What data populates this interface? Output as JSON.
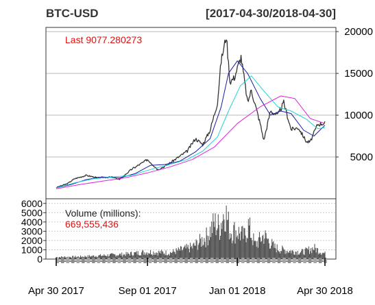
{
  "header": {
    "symbol": "BTC-USD",
    "date_range": "[2017-04-30/2018-04-30]"
  },
  "chart_data": [
    {
      "type": "line",
      "title": "BTC-USD",
      "subtitle": "[2017-04-30/2018-04-30]",
      "last_label": "Last 9077.280273",
      "ylim": [
        0,
        20500
      ],
      "y_ticks": [
        5000,
        10000,
        15000,
        20000
      ],
      "y_tick_labels": [
        "5000",
        "10000",
        "15000",
        "20000"
      ],
      "x_tick_labels": [
        "Apr 30 2017",
        "Sep 01 2017",
        "Jan 01 2018",
        "Apr 30 2018"
      ],
      "x_tick_dates": [
        "2017-04-30",
        "2017-09-01",
        "2018-01-01",
        "2018-04-30"
      ],
      "grid": true,
      "colors": {
        "price": "#333333",
        "ma1": "#1a1aa8",
        "ma2": "#22d3d3",
        "ma3": "#dd22dd",
        "last": "#e01010"
      },
      "series": [
        {
          "key": "price",
          "x": [
            "2017-04-30",
            "2017-05-15",
            "2017-05-25",
            "2017-06-10",
            "2017-06-25",
            "2017-07-15",
            "2017-07-25",
            "2017-08-10",
            "2017-08-25",
            "2017-09-01",
            "2017-09-15",
            "2017-09-25",
            "2017-10-10",
            "2017-10-25",
            "2017-11-05",
            "2017-11-15",
            "2017-11-25",
            "2017-12-05",
            "2017-12-10",
            "2017-12-17",
            "2017-12-22",
            "2017-12-28",
            "2018-01-06",
            "2018-01-15",
            "2018-01-20",
            "2018-02-01",
            "2018-02-06",
            "2018-02-15",
            "2018-02-25",
            "2018-03-05",
            "2018-03-15",
            "2018-03-25",
            "2018-04-05",
            "2018-04-10",
            "2018-04-20",
            "2018-04-30"
          ],
          "values": [
            1350,
            1800,
            2400,
            2800,
            2500,
            2600,
            2300,
            3500,
            4300,
            4700,
            3500,
            3900,
            4800,
            5700,
            7200,
            6500,
            8200,
            11500,
            16500,
            19500,
            14000,
            14500,
            17000,
            11500,
            13000,
            9000,
            7000,
            10500,
            10000,
            11500,
            8300,
            8500,
            6800,
            6800,
            8900,
            9077
          ]
        },
        {
          "key": "ma1",
          "x": [
            "2017-04-30",
            "2017-05-20",
            "2017-06-10",
            "2017-07-01",
            "2017-07-25",
            "2017-08-15",
            "2017-09-05",
            "2017-09-25",
            "2017-10-15",
            "2017-11-05",
            "2017-11-25",
            "2017-12-10",
            "2017-12-20",
            "2018-01-01",
            "2018-01-15",
            "2018-02-01",
            "2018-02-15",
            "2018-03-01",
            "2018-03-15",
            "2018-04-01",
            "2018-04-15",
            "2018-04-30"
          ],
          "values": [
            1300,
            1700,
            2300,
            2600,
            2500,
            3000,
            4000,
            4100,
            4500,
            5600,
            7200,
            11000,
            15000,
            16500,
            15000,
            12000,
            10000,
            10500,
            10200,
            8200,
            7500,
            8800
          ]
        },
        {
          "key": "ma2",
          "x": [
            "2017-04-30",
            "2017-05-25",
            "2017-06-20",
            "2017-07-15",
            "2017-08-10",
            "2017-09-05",
            "2017-10-01",
            "2017-10-25",
            "2017-11-15",
            "2017-12-05",
            "2017-12-20",
            "2018-01-05",
            "2018-01-20",
            "2018-02-05",
            "2018-02-25",
            "2018-03-15",
            "2018-04-05",
            "2018-04-20",
            "2018-04-30"
          ],
          "values": [
            1300,
            1900,
            2400,
            2600,
            2800,
            3500,
            4100,
            4700,
            5700,
            7400,
            10500,
            13500,
            14700,
            13000,
            11000,
            10500,
            9500,
            8400,
            8500
          ]
        },
        {
          "key": "ma3",
          "x": [
            "2017-04-30",
            "2017-06-01",
            "2017-07-01",
            "2017-08-01",
            "2017-09-01",
            "2017-10-01",
            "2017-11-01",
            "2017-12-01",
            "2018-01-01",
            "2018-02-01",
            "2018-03-01",
            "2018-03-20",
            "2018-04-10",
            "2018-04-30"
          ],
          "values": [
            1200,
            1700,
            2100,
            2500,
            3100,
            3800,
            4700,
            6200,
            9000,
            11000,
            12300,
            12000,
            9600,
            9000
          ]
        }
      ]
    },
    {
      "type": "bar",
      "title": "Volume (millions):",
      "value_label": "669,555,436",
      "ylim": [
        0,
        6500
      ],
      "y_ticks": [
        0,
        1000,
        2000,
        3000,
        4000,
        5000,
        6000
      ],
      "y_tick_labels": [
        "0",
        "1000",
        "2000",
        "3000",
        "4000",
        "5000",
        "6000"
      ],
      "grid": true,
      "bar_color": "#555555",
      "x": [
        "2017-05-01",
        "2017-06-01",
        "2017-07-01",
        "2017-08-01",
        "2017-09-01",
        "2017-10-01",
        "2017-11-01",
        "2017-11-20",
        "2017-12-01",
        "2017-12-08",
        "2017-12-15",
        "2017-12-22",
        "2018-01-01",
        "2018-01-10",
        "2018-01-16",
        "2018-01-25",
        "2018-02-06",
        "2018-02-20",
        "2018-03-01",
        "2018-03-15",
        "2018-04-01",
        "2018-04-15",
        "2018-04-30"
      ],
      "values": [
        250,
        300,
        450,
        600,
        900,
        800,
        1500,
        2800,
        4500,
        4000,
        6300,
        3600,
        3500,
        2800,
        4200,
        1800,
        3000,
        1500,
        1200,
        1000,
        900,
        1400,
        670
      ]
    }
  ]
}
